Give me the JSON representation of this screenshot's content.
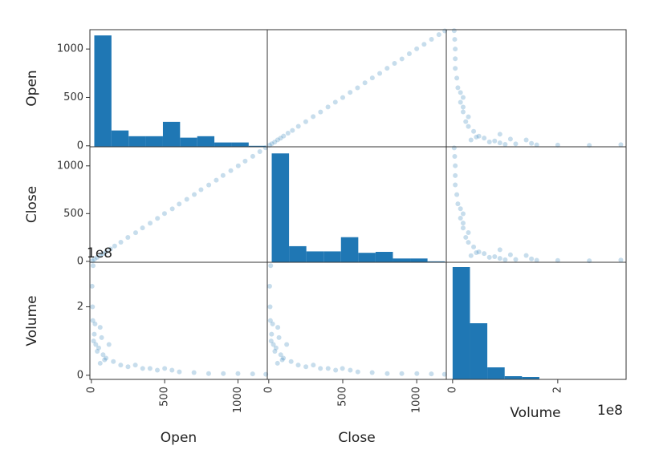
{
  "chart_data": {
    "type": "scatter_matrix",
    "color": "#1f77b4",
    "alpha": 0.25,
    "variables": [
      {
        "name": "Open",
        "lim": [
          -10,
          1200
        ],
        "ticks": [
          0,
          500,
          1000
        ]
      },
      {
        "name": "Close",
        "lim": [
          -10,
          1200
        ],
        "ticks": [
          0,
          500,
          1000
        ]
      },
      {
        "name": "Volume",
        "lim": [
          -0.12,
          3.3
        ],
        "ticks": [
          0,
          2
        ],
        "offset_label": "1e8"
      }
    ],
    "cells": [
      [
        {
          "type": "hist",
          "bins": [
            20,
            137,
            254,
            371,
            488,
            605,
            722,
            839,
            956,
            1073,
            1190
          ],
          "counts": [
            1160,
            170,
            110,
            110,
            260,
            95,
            110,
            45,
            45,
            10
          ],
          "ylim": [
            0,
            1220
          ]
        },
        {
          "type": "scatter",
          "x": [
            5,
            20,
            40,
            60,
            80,
            100,
            130,
            160,
            200,
            250,
            300,
            350,
            400,
            450,
            500,
            550,
            600,
            650,
            700,
            750,
            800,
            850,
            900,
            950,
            1000,
            1050,
            1100,
            1150,
            1190
          ],
          "y": [
            6,
            21,
            39,
            61,
            79,
            101,
            131,
            159,
            201,
            249,
            302,
            349,
            401,
            451,
            499,
            552,
            599,
            651,
            702,
            748,
            801,
            852,
            898,
            951,
            1002,
            1049,
            1101,
            1149,
            1188
          ]
        },
        {
          "type": "scatter",
          "x": [
            2.6,
            1.6,
            1.2,
            0.9,
            0.8,
            1.4,
            0.6,
            0.5,
            0.9,
            0.4,
            0.3,
            0.25,
            0.3,
            0.2,
            0.2,
            0.15,
            0.2,
            0.15,
            0.1,
            0.08,
            0.05,
            0.05,
            0.05,
            0.04,
            0.03,
            1.0,
            0.7,
            1.1,
            0.45,
            0.35,
            1.5,
            2.0,
            3.2
          ],
          "y": [
            5,
            10,
            20,
            30,
            50,
            60,
            80,
            100,
            120,
            150,
            200,
            250,
            300,
            350,
            400,
            450,
            500,
            550,
            600,
            700,
            800,
            900,
            1000,
            1100,
            1190,
            15,
            40,
            70,
            90,
            60,
            25,
            8,
            12
          ]
        }
      ],
      [
        {
          "type": "scatter",
          "x": [
            6,
            21,
            39,
            61,
            79,
            101,
            131,
            159,
            201,
            249,
            302,
            349,
            401,
            451,
            499,
            552,
            599,
            651,
            702,
            748,
            801,
            852,
            898,
            951,
            1002,
            1049,
            1101,
            1149,
            1188
          ],
          "y": [
            5,
            20,
            40,
            60,
            80,
            100,
            130,
            160,
            200,
            250,
            300,
            350,
            400,
            450,
            500,
            550,
            600,
            650,
            700,
            750,
            800,
            850,
            900,
            950,
            1000,
            1050,
            1100,
            1150,
            1190
          ]
        },
        {
          "type": "hist",
          "bins": [
            20,
            137,
            254,
            371,
            488,
            605,
            722,
            839,
            956,
            1073,
            1190
          ],
          "counts": [
            1150,
            170,
            115,
            115,
            265,
            100,
            110,
            40,
            40,
            10
          ],
          "ylim": [
            0,
            1220
          ]
        },
        {
          "type": "scatter",
          "x": [
            2.6,
            1.6,
            1.2,
            0.9,
            0.8,
            1.4,
            0.6,
            0.5,
            0.9,
            0.4,
            0.3,
            0.25,
            0.3,
            0.2,
            0.2,
            0.15,
            0.2,
            0.15,
            0.1,
            0.08,
            0.05,
            0.05,
            0.05,
            0.04,
            0.03,
            1.0,
            0.7,
            1.1,
            0.45,
            0.35,
            1.5,
            2.0,
            3.2
          ],
          "y": [
            6,
            11,
            19,
            31,
            49,
            61,
            81,
            99,
            121,
            151,
            199,
            251,
            301,
            349,
            401,
            452,
            498,
            551,
            602,
            699,
            801,
            899,
            1001,
            1099,
            1188,
            16,
            41,
            69,
            91,
            59,
            26,
            9,
            13
          ]
        }
      ],
      [
        {
          "type": "scatter",
          "x": [
            5,
            10,
            20,
            30,
            50,
            60,
            80,
            100,
            120,
            150,
            200,
            250,
            300,
            350,
            400,
            450,
            500,
            550,
            600,
            700,
            800,
            900,
            1000,
            1100,
            1190,
            15,
            40,
            70,
            90,
            60,
            25,
            8,
            12
          ],
          "y": [
            2.6,
            1.6,
            1.2,
            0.9,
            0.8,
            1.4,
            0.6,
            0.5,
            0.9,
            0.4,
            0.3,
            0.25,
            0.3,
            0.2,
            0.2,
            0.15,
            0.2,
            0.15,
            0.1,
            0.08,
            0.05,
            0.05,
            0.05,
            0.04,
            0.03,
            1.0,
            0.7,
            1.1,
            0.45,
            0.35,
            1.5,
            2.0,
            3.2
          ]
        },
        {
          "type": "scatter",
          "x": [
            6,
            11,
            19,
            31,
            49,
            61,
            81,
            99,
            121,
            151,
            199,
            251,
            301,
            349,
            401,
            452,
            498,
            551,
            602,
            699,
            801,
            899,
            1001,
            1099,
            1188,
            16,
            41,
            69,
            91,
            59,
            26,
            9,
            13
          ],
          "y": [
            2.6,
            1.6,
            1.2,
            0.9,
            0.8,
            1.4,
            0.6,
            0.5,
            0.9,
            0.4,
            0.3,
            0.25,
            0.3,
            0.2,
            0.2,
            0.15,
            0.2,
            0.15,
            0.1,
            0.08,
            0.05,
            0.05,
            0.05,
            0.04,
            0.03,
            1.0,
            0.7,
            1.1,
            0.45,
            0.35,
            1.5,
            2.0,
            3.2
          ]
        },
        {
          "type": "hist",
          "bins": [
            0,
            0.33,
            0.66,
            0.99,
            1.32,
            1.65,
            1.98,
            2.31,
            2.64,
            2.97,
            3.3
          ],
          "counts": [
            1400,
            700,
            150,
            40,
            30,
            5,
            3,
            2,
            1,
            1
          ],
          "ylim": [
            0,
            1460
          ]
        }
      ]
    ]
  }
}
